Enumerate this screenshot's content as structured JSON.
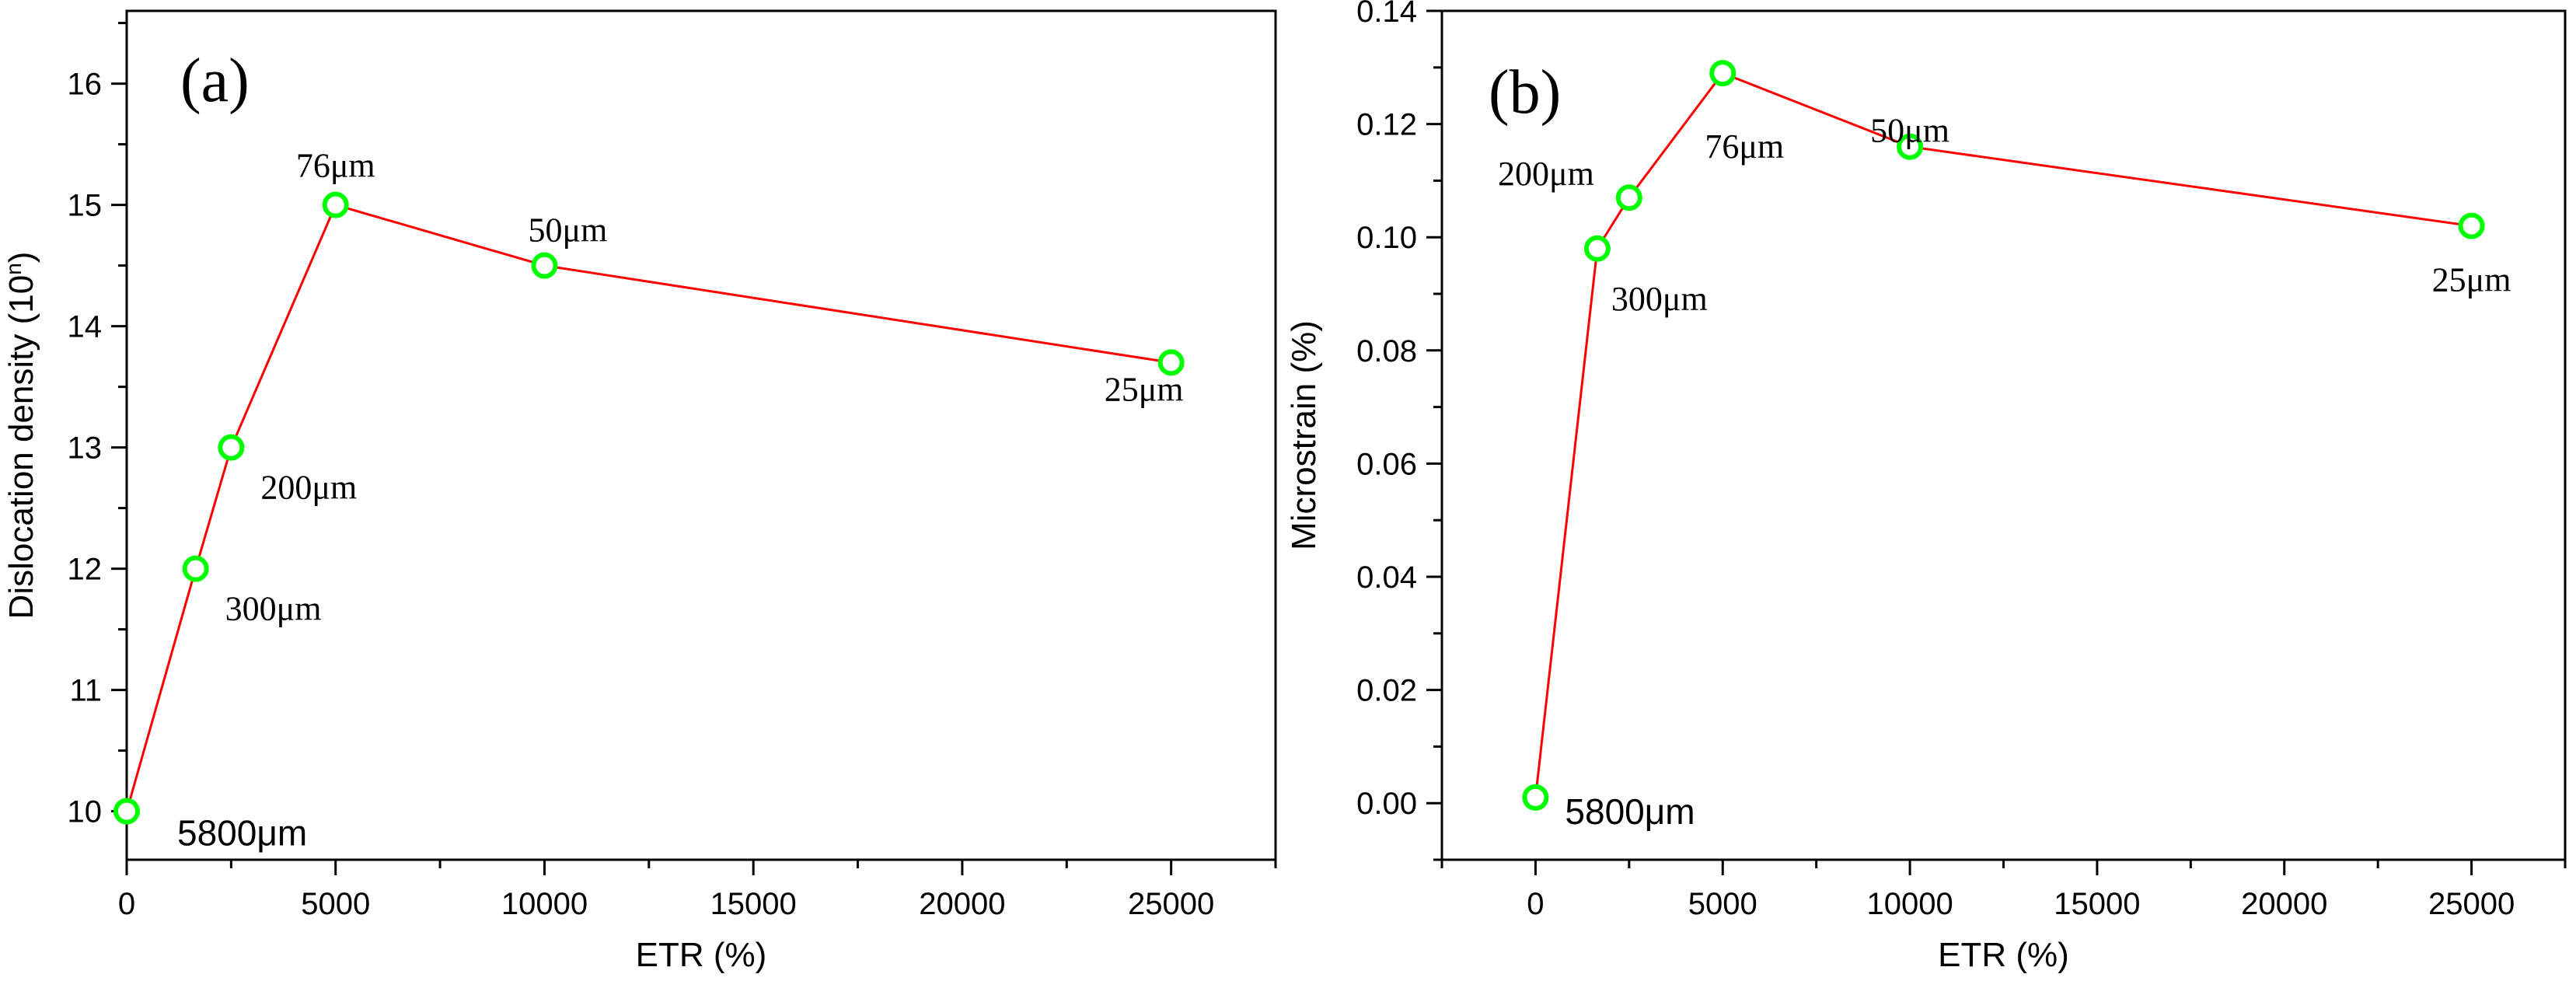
{
  "chart_data": [
    {
      "type": "line",
      "panel_label": "(a)",
      "title": "",
      "xlabel": "ETR (%)",
      "ylabel": "Dislocation density (10",
      "ylabel_sup": "n",
      "ylabel_close": ")",
      "xlim": [
        0,
        27500
      ],
      "ylim": [
        9.6,
        16.6
      ],
      "xticks": [
        0,
        5000,
        10000,
        15000,
        20000,
        25000
      ],
      "xtick_labels": [
        "0",
        "5000",
        "10000",
        "15000",
        "20000",
        "25000"
      ],
      "yticks": [
        10,
        11,
        12,
        13,
        14,
        15,
        16
      ],
      "ytick_labels": [
        "10",
        "11",
        "12",
        "13",
        "14",
        "15",
        "16"
      ],
      "grid": false,
      "series": [
        {
          "name": "Dislocation density",
          "line_color": "#ff0000",
          "marker_color": "#00ff00",
          "x": [
            0,
            1650,
            2500,
            5000,
            10000,
            25000
          ],
          "y": [
            10.0,
            12.0,
            13.0,
            15.0,
            14.5,
            13.7
          ]
        }
      ],
      "point_labels": [
        "5800μm",
        "300μm",
        "200μm",
        "76μm",
        "50μm",
        "25μm"
      ]
    },
    {
      "type": "line",
      "panel_label": "(b)",
      "title": "",
      "xlabel": "ETR (%)",
      "ylabel": "Microstrain (%)",
      "xlim": [
        -2500,
        27500
      ],
      "ylim": [
        -0.01,
        0.14
      ],
      "xticks": [
        0,
        5000,
        10000,
        15000,
        20000,
        25000
      ],
      "xtick_labels": [
        "0",
        "5000",
        "10000",
        "15000",
        "20000",
        "25000"
      ],
      "yticks": [
        0.0,
        0.02,
        0.04,
        0.06,
        0.08,
        0.1,
        0.12,
        0.14
      ],
      "ytick_labels": [
        "0.00",
        "0.02",
        "0.04",
        "0.06",
        "0.08",
        "0.10",
        "0.12",
        "0.14"
      ],
      "grid": false,
      "series": [
        {
          "name": "Microstrain",
          "line_color": "#ff0000",
          "marker_color": "#00ff00",
          "x": [
            0,
            1650,
            2500,
            5000,
            10000,
            25000
          ],
          "y": [
            0.001,
            0.098,
            0.107,
            0.129,
            0.116,
            0.102
          ]
        }
      ],
      "point_labels": [
        "5800μm",
        "300μm",
        "200μm",
        "76μm",
        "50μm",
        "25μm"
      ]
    }
  ]
}
